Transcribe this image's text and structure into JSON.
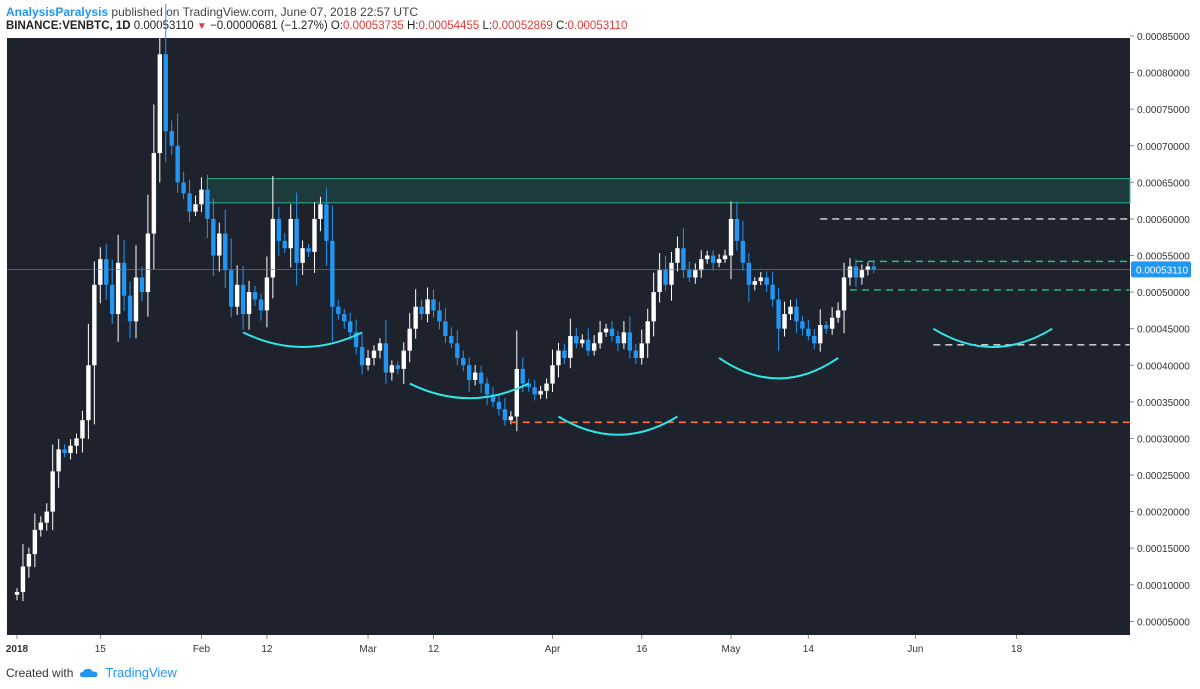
{
  "header": {
    "author": "AnalysisParalysis",
    "published_text": "published on TradingView.com, June 07, 2018 22:57 UTC",
    "symbol": "BINANCE:VENBTC, 1D",
    "last": "0.00053110",
    "change": "−0.00000681 (−1.27%)",
    "open_label": "O:",
    "open": "0.00053735",
    "high_label": "H:",
    "high": "0.00054455",
    "low_label": "L:",
    "low": "0.00052869",
    "close_label": "C:",
    "close": "0.00053110"
  },
  "footer": {
    "created_with": "Created with",
    "brand": "TradingView",
    "logo_icon": "tradingview-cloud-icon"
  },
  "colors": {
    "background": "#1e222d",
    "up_candle": "#ffffff",
    "down_candle": "#2196f3",
    "resistance_zone": "#1d5c50",
    "support_orange": "#ff6d3a",
    "green_dashed": "#26c281",
    "white_dashed": "#e0e0e0",
    "arc": "#2ee6e6",
    "last_price_label": "#2196f3"
  },
  "chart_data": {
    "type": "candlestick",
    "ylim": [
      3e-05,
      0.00088
    ],
    "y_ticks": [
      "0.00085000",
      "0.00080000",
      "0.00075000",
      "0.00070000",
      "0.00065000",
      "0.00060000",
      "0.00055000",
      "0.00050000",
      "0.00045000",
      "0.00040000",
      "0.00035000",
      "0.00030000",
      "0.00025000",
      "0.00020000",
      "0.00015000",
      "0.00010000",
      "0.00005000"
    ],
    "x_ticks": [
      {
        "label": "2018",
        "day": 0,
        "bold": true
      },
      {
        "label": "15",
        "day": 14
      },
      {
        "label": "Feb",
        "day": 31
      },
      {
        "label": "12",
        "day": 42
      },
      {
        "label": "Mar",
        "day": 59
      },
      {
        "label": "12",
        "day": 70
      },
      {
        "label": "Apr",
        "day": 90
      },
      {
        "label": "16",
        "day": 105
      },
      {
        "label": "May",
        "day": 120
      },
      {
        "label": "14",
        "day": 133
      },
      {
        "label": "Jun",
        "day": 151
      },
      {
        "label": "18",
        "day": 168
      }
    ],
    "last_price": 0.0005311,
    "last_price_label": "0.00053110",
    "closes": [
      9e-05,
      0.000125,
      0.000142,
      0.000175,
      0.000185,
      0.0002,
      0.000255,
      0.000285,
      0.00028,
      0.00029,
      0.0003,
      0.000325,
      0.0004,
      0.00051,
      0.000545,
      0.00051,
      0.00047,
      0.00054,
      0.000495,
      0.00046,
      0.00052,
      0.0005,
      0.00058,
      0.00069,
      0.000825,
      0.00072,
      0.0007,
      0.00065,
      0.000635,
      0.00061,
      0.00062,
      0.00064,
      0.0006,
      0.00055,
      0.00058,
      0.00053,
      0.00048,
      0.00051,
      0.00047,
      0.0005,
      0.00049,
      0.000475,
      0.00052,
      0.0006,
      0.00057,
      0.00056,
      0.0006,
      0.00054,
      0.00056,
      0.000555,
      0.0006,
      0.00062,
      0.00057,
      0.00048,
      0.00047,
      0.00046,
      0.000445,
      0.000425,
      0.0004,
      0.00041,
      0.00042,
      0.00043,
      0.00039,
      0.0004,
      0.000395,
      0.00042,
      0.00045,
      0.00048,
      0.00047,
      0.00049,
      0.000475,
      0.00046,
      0.00044,
      0.00043,
      0.00041,
      0.0004,
      0.00038,
      0.00039,
      0.000375,
      0.00036,
      0.00035,
      0.00034,
      0.000325,
      0.00033,
      0.000395,
      0.000375,
      0.00037,
      0.00036,
      0.000365,
      0.000375,
      0.0004,
      0.00042,
      0.00041,
      0.00044,
      0.00043,
      0.000435,
      0.00042,
      0.00043,
      0.000445,
      0.00045,
      0.00044,
      0.00043,
      0.000445,
      0.00042,
      0.00041,
      0.00043,
      0.00046,
      0.0005,
      0.00053,
      0.00051,
      0.00054,
      0.00056,
      0.00053,
      0.00052,
      0.00053,
      0.000545,
      0.00055,
      0.00054,
      0.000545,
      0.00055,
      0.0006,
      0.00057,
      0.00054,
      0.00051,
      0.000515,
      0.00052,
      0.00051,
      0.00049,
      0.00045,
      0.00047,
      0.00048,
      0.00046,
      0.00045,
      0.00044,
      0.00043,
      0.000455,
      0.00045,
      0.000465,
      0.000475,
      0.00052,
      0.000535,
      0.00052,
      0.00053,
      0.000535,
      0.000531
    ]
  }
}
